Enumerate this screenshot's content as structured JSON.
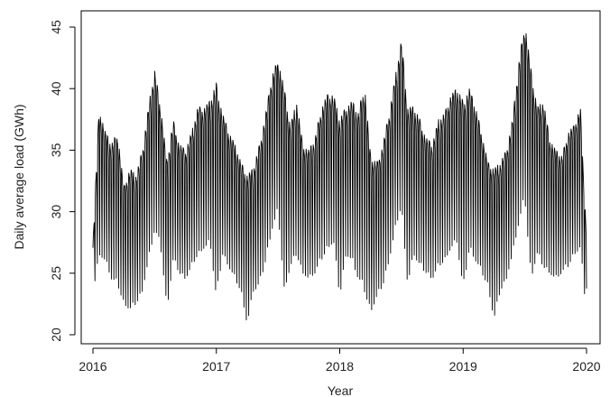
{
  "chart_data": {
    "type": "line",
    "title": "",
    "xlabel": "Year",
    "ylabel": "Daily average load (GWh)",
    "xlim": [
      2016,
      2020
    ],
    "ylim": [
      20,
      45
    ],
    "xticks": [
      "2016",
      "2017",
      "2018",
      "2019",
      "2020"
    ],
    "yticks": [
      "20",
      "25",
      "30",
      "35",
      "40",
      "45"
    ],
    "grid": false,
    "legend": "none",
    "line_color": "#000000",
    "series": [
      {
        "x": [
          2016.0,
          2016.05,
          2016.1,
          2016.15,
          2016.2,
          2016.25,
          2016.3,
          2016.35,
          2016.4,
          2016.45,
          2016.5,
          2016.55,
          2016.6,
          2016.65,
          2016.7,
          2016.75,
          2016.8,
          2016.85,
          2016.9,
          2016.95,
          2017.0,
          2017.05,
          2017.1,
          2017.15,
          2017.2,
          2017.25,
          2017.3,
          2017.35,
          2017.4,
          2017.45,
          2017.5,
          2017.55,
          2017.6,
          2017.65,
          2017.7,
          2017.75,
          2017.8,
          2017.85,
          2017.9,
          2017.95,
          2018.0,
          2018.05,
          2018.1,
          2018.15,
          2018.2,
          2018.25,
          2018.3,
          2018.35,
          2018.4,
          2018.45,
          2018.5,
          2018.55,
          2018.6,
          2018.65,
          2018.7,
          2018.75,
          2018.8,
          2018.85,
          2018.9,
          2018.95,
          2019.0,
          2019.05,
          2019.1,
          2019.15,
          2019.2,
          2019.25,
          2019.3,
          2019.35,
          2019.4,
          2019.45,
          2019.5,
          2019.55,
          2019.6,
          2019.65,
          2019.7,
          2019.75,
          2019.8,
          2019.85,
          2019.9,
          2019.95,
          2020.0
        ],
        "upper": [
          27.5,
          38.5,
          36.5,
          35.5,
          36.5,
          32.0,
          33.5,
          33.0,
          35.0,
          38.5,
          41.5,
          38.5,
          34.0,
          37.5,
          35.5,
          35.0,
          36.5,
          38.5,
          38.5,
          39.0,
          40.5,
          38.0,
          36.5,
          35.5,
          34.0,
          33.0,
          33.5,
          35.5,
          38.0,
          41.0,
          42.5,
          40.0,
          37.0,
          39.0,
          35.5,
          35.0,
          36.0,
          38.5,
          39.5,
          39.5,
          37.5,
          38.5,
          39.0,
          38.0,
          40.5,
          34.5,
          34.0,
          35.5,
          38.0,
          41.0,
          44.0,
          38.5,
          38.5,
          37.5,
          36.0,
          35.5,
          37.5,
          38.0,
          39.5,
          40.0,
          39.0,
          40.0,
          38.5,
          36.5,
          34.0,
          33.5,
          34.0,
          35.0,
          37.5,
          42.0,
          45.5,
          41.5,
          38.5,
          39.0,
          36.0,
          35.0,
          34.5,
          36.5,
          37.0,
          38.5,
          28.0
        ],
        "lower": [
          23.3,
          26.5,
          26.0,
          24.5,
          24.0,
          22.5,
          22.0,
          22.5,
          23.5,
          26.0,
          28.5,
          27.0,
          22.0,
          26.0,
          25.0,
          24.5,
          25.5,
          26.5,
          27.0,
          27.5,
          22.8,
          26.5,
          25.5,
          24.5,
          23.5,
          20.8,
          23.5,
          24.0,
          26.0,
          28.5,
          30.0,
          23.5,
          25.5,
          26.5,
          25.0,
          24.5,
          25.0,
          26.0,
          27.0,
          27.5,
          23.0,
          26.5,
          26.0,
          24.5,
          23.5,
          21.8,
          23.0,
          24.0,
          26.0,
          28.5,
          30.5,
          24.0,
          26.5,
          25.5,
          25.0,
          24.5,
          25.5,
          26.0,
          27.0,
          27.5,
          23.5,
          27.0,
          26.0,
          25.0,
          24.0,
          21.2,
          23.5,
          24.5,
          26.5,
          29.0,
          31.0,
          24.5,
          26.5,
          25.5,
          25.0,
          24.5,
          25.0,
          25.5,
          26.5,
          27.0,
          21.5
        ]
      }
    ]
  }
}
